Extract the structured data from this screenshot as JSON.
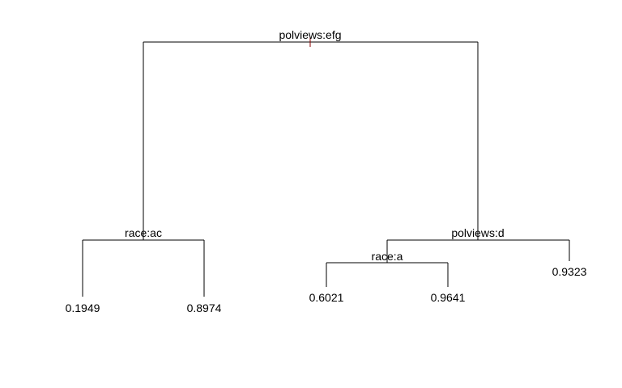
{
  "tree": {
    "splits": [
      {
        "id": "root",
        "label": "polviews:efg"
      },
      {
        "id": "left",
        "label": "race:ac"
      },
      {
        "id": "right",
        "label": "polviews:d"
      },
      {
        "id": "right_left",
        "label": "race:a"
      }
    ],
    "leaves": [
      {
        "id": "leaf1",
        "value": "0.1949"
      },
      {
        "id": "leaf2",
        "value": "0.8974"
      },
      {
        "id": "leaf3",
        "value": "0.6021"
      },
      {
        "id": "leaf4",
        "value": "0.9641"
      },
      {
        "id": "leaf5",
        "value": "0.9323"
      }
    ],
    "colors": {
      "lines": "#000000",
      "root_marker": "#8b0000",
      "background": "#ffffff"
    }
  }
}
